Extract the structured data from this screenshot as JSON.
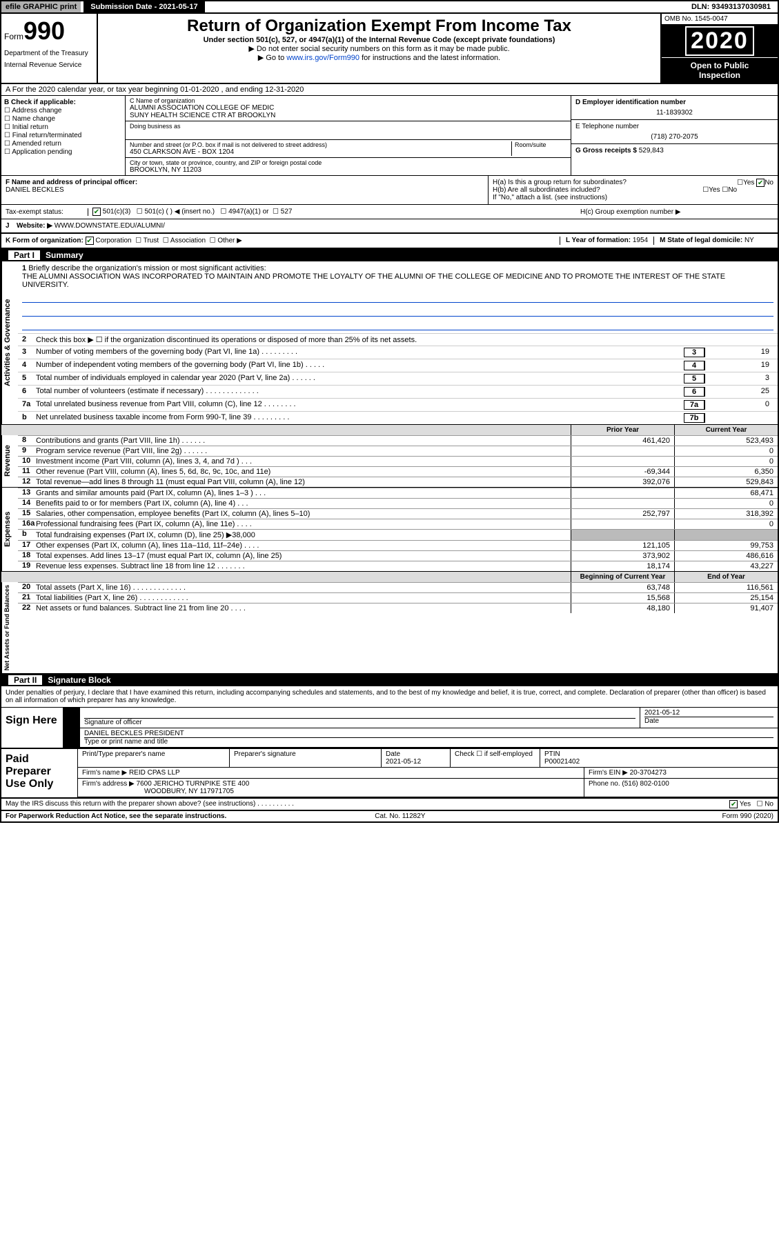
{
  "meta": {
    "efile_label": "efile GRAPHIC print",
    "submission_label": "Submission Date - 2021-05-17",
    "dln": "DLN: 93493137030981",
    "omb": "OMB No. 1545-0047",
    "year": "2020",
    "open_line1": "Open to Public",
    "open_line2": "Inspection",
    "form_label": "Form",
    "form_num": "990",
    "title": "Return of Organization Exempt From Income Tax",
    "subtitle": "Under section 501(c), 527, or 4947(a)(1) of the Internal Revenue Code (except private foundations)",
    "arrow1": "▶ Do not enter social security numbers on this form as it may be made public.",
    "arrow2_pre": "▶ Go to ",
    "arrow2_link": "www.irs.gov/Form990",
    "arrow2_post": " for instructions and the latest information.",
    "dept1": "Department of the Treasury",
    "dept2": "Internal Revenue Service"
  },
  "lineA": "A For the 2020 calendar year, or tax year beginning 01-01-2020    , and ending 12-31-2020",
  "B": {
    "label": "B Check if applicable:",
    "opts": [
      "Address change",
      "Name change",
      "Initial return",
      "Final return/terminated",
      "Amended return",
      "Application pending"
    ]
  },
  "C": {
    "name_label": "C Name of organization",
    "name1": "ALUMNI ASSOCIATION COLLEGE OF MEDIC",
    "name2": "SUNY HEALTH SCIENCE CTR AT BROOKLYN",
    "dba_label": "Doing business as",
    "addr_label": "Number and street (or P.O. box if mail is not delivered to street address)",
    "suite_label": "Room/suite",
    "addr": "450 CLARKSON AVE - BOX 1204",
    "city_label": "City or town, state or province, country, and ZIP or foreign postal code",
    "city": "BROOKLYN, NY  11203"
  },
  "D": {
    "label": "D Employer identification number",
    "value": "11-1839302"
  },
  "E": {
    "label": "E Telephone number",
    "value": "(718) 270-2075"
  },
  "G": {
    "label": "G Gross receipts $",
    "value": "529,843"
  },
  "F": {
    "label": "F  Name and address of principal officer:",
    "name": "DANIEL BECKLES"
  },
  "H": {
    "a": "H(a)  Is this a group return for subordinates?",
    "b": "H(b)  Are all subordinates included?",
    "b_note": "If \"No,\" attach a list. (see instructions)",
    "c": "H(c)  Group exemption number ▶",
    "yes": "Yes",
    "no": "No"
  },
  "I": {
    "label": "Tax-exempt status:",
    "opts": [
      "501(c)(3)",
      "501(c) (  ) ◀ (insert no.)",
      "4947(a)(1) or",
      "527"
    ]
  },
  "J": {
    "label": "J",
    "text": "Website: ▶",
    "value": "WWW.DOWNSTATE.EDU/ALUMNI/"
  },
  "K": {
    "label": "K Form of organization:",
    "opts": [
      "Corporation",
      "Trust",
      "Association",
      "Other ▶"
    ]
  },
  "L": {
    "label": "L Year of formation:",
    "value": "1954"
  },
  "M": {
    "label": "M State of legal domicile:",
    "value": "NY"
  },
  "part1": {
    "tag": "Part I",
    "title": "Summary"
  },
  "mission": {
    "num": "1",
    "label": "Briefly describe the organization's mission or most significant activities:",
    "text": "THE ALUMNI ASSOCIATION WAS INCORPORATED TO MAINTAIN AND PROMOTE THE LOYALTY OF THE ALUMNI OF THE COLLEGE OF MEDICINE AND TO PROMOTE THE INTEREST OF THE STATE UNIVERSITY."
  },
  "gov": {
    "tab": "Activities & Governance",
    "l2": "Check this box ▶ ☐  if the organization discontinued its operations or disposed of more than 25% of its net assets.",
    "rows": [
      {
        "n": "3",
        "t": "Number of voting members of the governing body (Part VI, line 1a)    .    .    .    .    .    .    .    .    .",
        "b": "3",
        "v": "19"
      },
      {
        "n": "4",
        "t": "Number of independent voting members of the governing body (Part VI, line 1b)   .    .    .    .    .",
        "b": "4",
        "v": "19"
      },
      {
        "n": "5",
        "t": "Total number of individuals employed in calendar year 2020 (Part V, line 2a)   .    .    .    .    .    .",
        "b": "5",
        "v": "3"
      },
      {
        "n": "6",
        "t": "Total number of volunteers (estimate if necessary)    .    .    .    .    .    .    .    .    .    .    .    .    .",
        "b": "6",
        "v": "25"
      },
      {
        "n": "7a",
        "t": "Total unrelated business revenue from Part VIII, column (C), line 12    .    .    .    .    .    .    .    .",
        "b": "7a",
        "v": "0"
      },
      {
        "n": "b",
        "t": "Net unrelated business taxable income from Form 990-T, line 39    .    .    .    .    .    .    .    .    .",
        "b": "7b",
        "v": ""
      }
    ]
  },
  "fin_hdr": {
    "c1": "Prior Year",
    "c2": "Current Year"
  },
  "rev": {
    "tab": "Revenue",
    "rows": [
      {
        "n": "8",
        "t": "Contributions and grants (Part VIII, line 1h)    .    .    .    .    .    .",
        "c1": "461,420",
        "c2": "523,493"
      },
      {
        "n": "9",
        "t": "Program service revenue (Part VIII, line 2g)    .    .    .    .    .    .",
        "c1": "",
        "c2": "0"
      },
      {
        "n": "10",
        "t": "Investment income (Part VIII, column (A), lines 3, 4, and 7d )    .    .    .",
        "c1": "",
        "c2": "0"
      },
      {
        "n": "11",
        "t": "Other revenue (Part VIII, column (A), lines 5, 6d, 8c, 9c, 10c, and 11e)",
        "c1": "-69,344",
        "c2": "6,350"
      },
      {
        "n": "12",
        "t": "Total revenue—add lines 8 through 11 (must equal Part VIII, column (A), line 12)",
        "c1": "392,076",
        "c2": "529,843"
      }
    ]
  },
  "exp": {
    "tab": "Expenses",
    "rows": [
      {
        "n": "13",
        "t": "Grants and similar amounts paid (Part IX, column (A), lines 1–3 )   .    .    .",
        "c1": "",
        "c2": "68,471"
      },
      {
        "n": "14",
        "t": "Benefits paid to or for members (Part IX, column (A), line 4)    .    .    .",
        "c1": "",
        "c2": "0"
      },
      {
        "n": "15",
        "t": "Salaries, other compensation, employee benefits (Part IX, column (A), lines 5–10)",
        "c1": "252,797",
        "c2": "318,392"
      },
      {
        "n": "16a",
        "t": "Professional fundraising fees (Part IX, column (A), line 11e)    .    .    .    .",
        "c1": "",
        "c2": "0"
      },
      {
        "n": "b",
        "t": "Total fundraising expenses (Part IX, column (D), line 25) ▶38,000",
        "c1": "shade",
        "c2": "shade"
      },
      {
        "n": "17",
        "t": "Other expenses (Part IX, column (A), lines 11a–11d, 11f–24e)    .    .    .    .",
        "c1": "121,105",
        "c2": "99,753"
      },
      {
        "n": "18",
        "t": "Total expenses. Add lines 13–17 (must equal Part IX, column (A), line 25)",
        "c1": "373,902",
        "c2": "486,616"
      },
      {
        "n": "19",
        "t": "Revenue less expenses. Subtract line 18 from line 12    .    .    .    .    .    .    .",
        "c1": "18,174",
        "c2": "43,227"
      }
    ]
  },
  "net_hdr": {
    "c1": "Beginning of Current Year",
    "c2": "End of Year"
  },
  "net": {
    "tab": "Net Assets or Fund Balances",
    "rows": [
      {
        "n": "20",
        "t": "Total assets (Part X, line 16)   .    .    .    .    .    .    .    .    .    .    .    .    .",
        "c1": "63,748",
        "c2": "116,561"
      },
      {
        "n": "21",
        "t": "Total liabilities (Part X, line 26)   .    .    .    .    .    .    .    .    .    .    .    .",
        "c1": "15,568",
        "c2": "25,154"
      },
      {
        "n": "22",
        "t": "Net assets or fund balances. Subtract line 21 from line 20   .    .    .    .",
        "c1": "48,180",
        "c2": "91,407"
      }
    ]
  },
  "part2": {
    "tag": "Part II",
    "title": "Signature Block"
  },
  "sig": {
    "decl": "Under penalties of perjury, I declare that I have examined this return, including accompanying schedules and statements, and to the best of my knowledge and belief, it is true, correct, and complete. Declaration of preparer (other than officer) is based on all information of which preparer has any knowledge.",
    "here": "Sign Here",
    "officer_label": "Signature of officer",
    "date_label": "Date",
    "date_value": "2021-05-12",
    "name": "DANIEL BECKLES  PRESIDENT",
    "name_label": "Type or print name and title"
  },
  "prep": {
    "title": "Paid Preparer Use Only",
    "h1": "Print/Type preparer's name",
    "h2": "Preparer's signature",
    "h3": "Date",
    "h3v": "2021-05-12",
    "h4": "Check ☐  if self-employed",
    "h5": "PTIN",
    "h5v": "P00021402",
    "firm_label": "Firm's name    ▶",
    "firm": "REID CPAS LLP",
    "ein_label": "Firm's EIN ▶",
    "ein": "20-3704273",
    "addr_label": "Firm's address ▶",
    "addr1": "7600 JERICHO TURNPIKE STE 400",
    "addr2": "WOODBURY, NY  117971705",
    "phone_label": "Phone no.",
    "phone": "(516) 802-0100"
  },
  "discuss": {
    "text": "May the IRS discuss this return with the preparer shown above? (see instructions)    .    .    .    .    .    .    .    .    .    .",
    "yes": "Yes",
    "no": "No"
  },
  "footer": {
    "left": "For Paperwork Reduction Act Notice, see the separate instructions.",
    "mid": "Cat. No. 11282Y",
    "right": "Form 990 (2020)"
  }
}
